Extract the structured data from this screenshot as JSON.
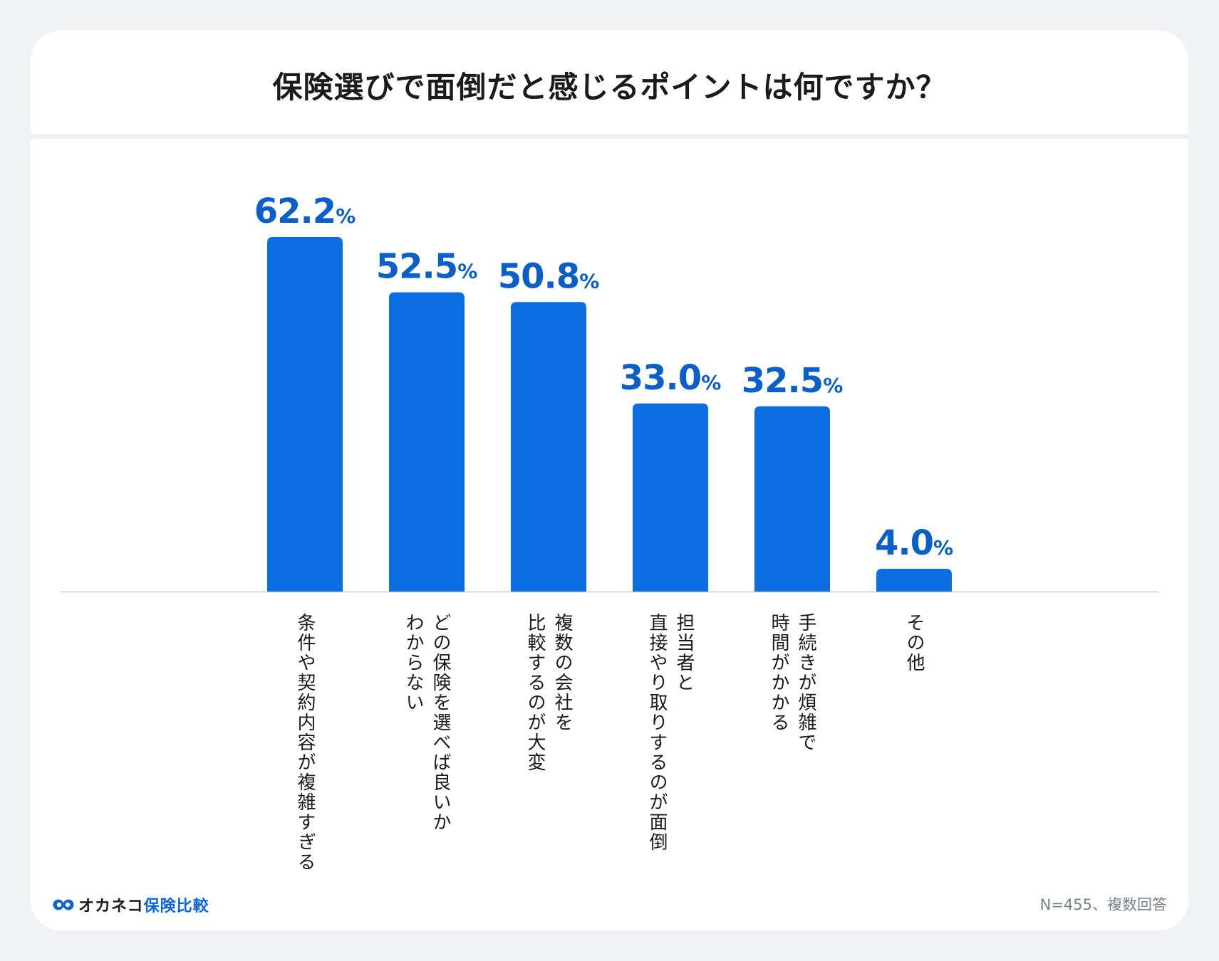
{
  "title": "保険選びで面倒だと感じるポイントは何ですか？",
  "colors": {
    "bar": "#0a6ee2",
    "value_label": "#0a5fc8",
    "axis": "#c9ccd2"
  },
  "chart_data": {
    "type": "bar",
    "title": "保険選びで面倒だと感じるポイントは何ですか？",
    "categories": [
      "条件や契約内容が複雑すぎる",
      "どの保険を選べば良いかわからない",
      "複数の会社を比較するのが大変",
      "担当者と直接やり取りするのが面倒",
      "手続きが煩雑で時間がかかる",
      "その他"
    ],
    "label_lines": [
      [
        "条件や契約内容が複雑すぎる"
      ],
      [
        "どの保険を選べば良いか",
        "わからない"
      ],
      [
        "複数の会社を",
        "比較するのが大変"
      ],
      [
        "担当者と",
        "直接やり取りするのが面倒"
      ],
      [
        "手続きが煩雑で",
        "時間がかかる"
      ],
      [
        "その他"
      ]
    ],
    "values": [
      62.2,
      52.5,
      50.8,
      33.0,
      32.5,
      4.0
    ],
    "value_labels": [
      "62.2",
      "52.5",
      "50.8",
      "33.0",
      "32.5",
      "4.0"
    ],
    "unit": "%",
    "xlabel": "",
    "ylabel": "",
    "ylim": [
      0,
      100
    ],
    "grid": false,
    "legend": "none"
  },
  "footer": {
    "logo_text_main": "オカネコ",
    "logo_text_accent": "保険比較",
    "note": "N=455、複数回答"
  }
}
